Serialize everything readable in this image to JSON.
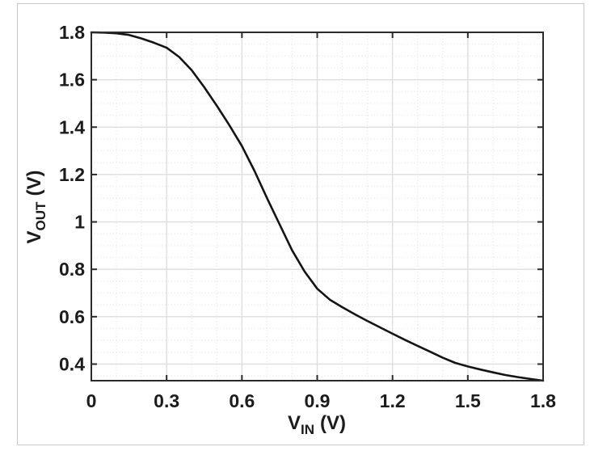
{
  "chart_data": {
    "type": "line",
    "xlabel": {
      "main": "V",
      "sub": "IN",
      "unit": "(V)"
    },
    "ylabel": {
      "main": "V",
      "sub": "OUT",
      "unit": "(V)"
    },
    "xlim": [
      0,
      1.8
    ],
    "ylim": [
      0.33,
      1.8
    ],
    "x_ticks": [
      0,
      0.3,
      0.6,
      0.9,
      1.2,
      1.5,
      1.8
    ],
    "x_tick_labels": [
      "0",
      "0.3",
      "0.6",
      "0.9",
      "1.2",
      "1.5",
      "1.8"
    ],
    "y_ticks": [
      0.4,
      0.6,
      0.8,
      1.0,
      1.2,
      1.4,
      1.6,
      1.8
    ],
    "y_tick_labels": [
      "0.4",
      "0.6",
      "0.8",
      "1",
      "1.2",
      "1.4",
      "1.6",
      "1.8"
    ],
    "x_major_step": 0.3,
    "y_major_step": 0.2,
    "x_minor_step": 0.1,
    "y_minor_step": 0.05,
    "grid": true,
    "legend": "none",
    "series": [
      {
        "x": [
          0.0,
          0.05,
          0.1,
          0.15,
          0.2,
          0.25,
          0.3,
          0.35,
          0.4,
          0.45,
          0.5,
          0.55,
          0.6,
          0.65,
          0.7,
          0.75,
          0.8,
          0.85,
          0.9,
          0.95,
          1.0,
          1.05,
          1.1,
          1.15,
          1.2,
          1.25,
          1.3,
          1.35,
          1.4,
          1.45,
          1.5,
          1.55,
          1.6,
          1.65,
          1.7,
          1.75,
          1.8
        ],
        "y": [
          1.8,
          1.799,
          1.796,
          1.789,
          1.774,
          1.756,
          1.735,
          1.696,
          1.64,
          1.568,
          1.49,
          1.408,
          1.32,
          1.215,
          1.1,
          0.99,
          0.88,
          0.79,
          0.718,
          0.672,
          0.64,
          0.61,
          0.582,
          0.555,
          0.528,
          0.502,
          0.477,
          0.452,
          0.427,
          0.405,
          0.39,
          0.377,
          0.365,
          0.354,
          0.345,
          0.337,
          0.33
        ]
      }
    ]
  },
  "style": {
    "curve_color": "#141414",
    "axis_color": "#2b2b2b",
    "grid_major_color": "#dedede",
    "grid_minor_color": "#e9e9e9",
    "tick_label_color": "#1c1c1c",
    "figure_border_color": "#c9c9c9",
    "background": "#ffffff"
  }
}
